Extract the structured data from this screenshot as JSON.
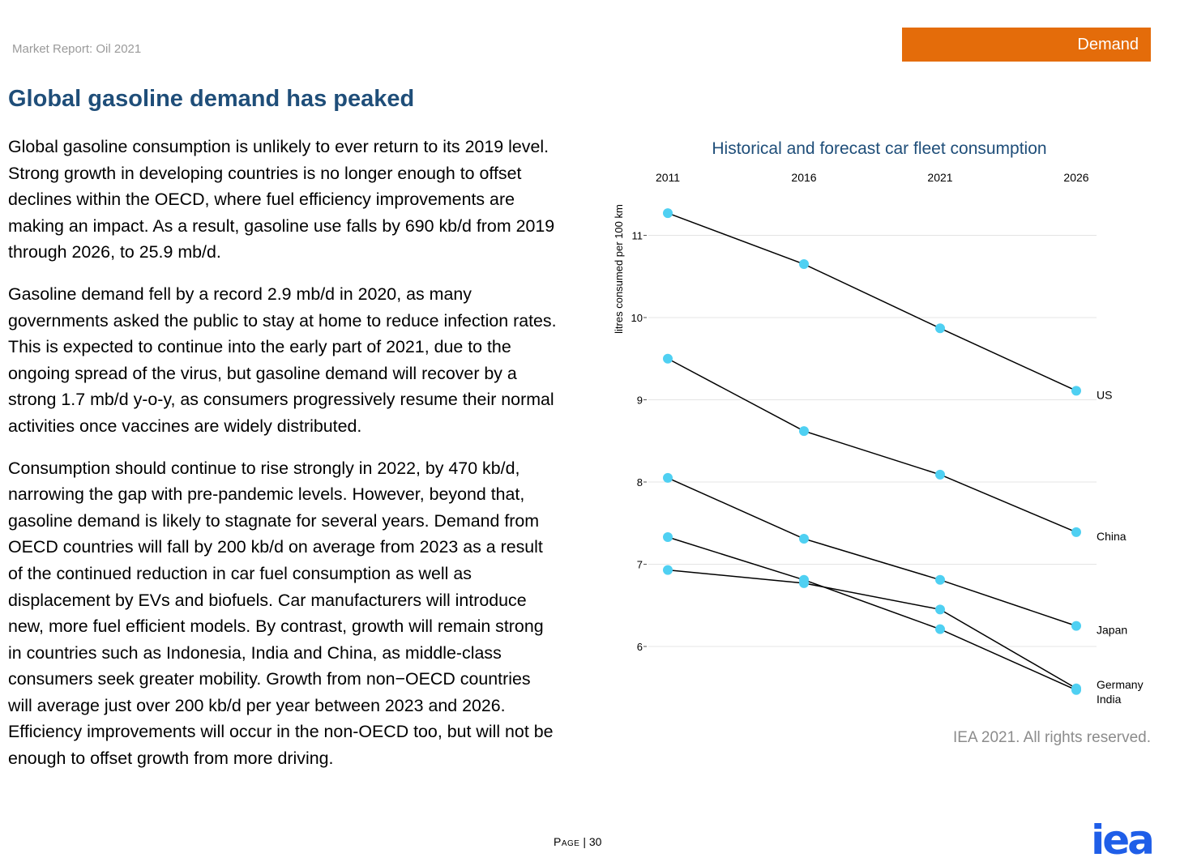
{
  "header": {
    "report_name": "Market Report: Oil 2021",
    "section": "Demand"
  },
  "page_title": "Global gasoline demand has peaked",
  "paragraphs": [
    "Global gasoline consumption is unlikely to ever return to its 2019 level. Strong growth in developing countries is no longer enough to offset declines within the OECD, where fuel efficiency improvements are making an impact. As a result, gasoline use falls by 690 kb/d from 2019 through 2026, to 25.9 mb/d.",
    "Gasoline demand fell by a record 2.9 mb/d in 2020, as many governments asked the public to stay at home to reduce infection rates. This is expected to continue into the early part of 2021, due to the ongoing spread of the virus, but gasoline demand will recover by a strong 1.7 mb/d y-o-y, as consumers progressively resume their normal activities once vaccines are widely distributed.",
    "Consumption should continue to rise strongly in 2022, by 470 kb/d, narrowing the gap with pre-pandemic levels. However, beyond that, gasoline demand is likely to stagnate for several years. Demand from OECD countries will fall by 200 kb/d on average from 2023 as a result of the continued reduction in car fuel consumption as well as displacement by EVs and biofuels. Car manufacturers will introduce new, more fuel efficient models. By contrast, growth will remain strong in countries such as Indonesia, India and China, as middle-class consumers seek greater mobility. Growth from non−OECD countries will average just over 200 kb/d per year between 2023 and 2026. Efficiency improvements will occur in the non-OECD too, but will not be enough to offset growth from more driving."
  ],
  "chart_data": {
    "type": "line",
    "title": "Historical and forecast car fleet consumption",
    "xlabel": "",
    "ylabel": "litres consumed per 100 km",
    "x": [
      "2011",
      "2016",
      "2021",
      "2026"
    ],
    "y_ticks": [
      6,
      7,
      8,
      9,
      10,
      11
    ],
    "ylim": [
      5.2,
      11.6
    ],
    "x_axis_position": "top",
    "grid": true,
    "series": [
      {
        "name": "US",
        "values": [
          11.27,
          10.65,
          9.87,
          9.11
        ]
      },
      {
        "name": "China",
        "values": [
          9.5,
          8.62,
          8.09,
          7.39
        ]
      },
      {
        "name": "Japan",
        "values": [
          8.05,
          7.31,
          6.81,
          6.25
        ]
      },
      {
        "name": "Germany",
        "values": [
          7.33,
          6.81,
          6.21,
          5.47
        ]
      },
      {
        "name": "India",
        "values": [
          6.93,
          6.77,
          6.45,
          5.49
        ]
      }
    ],
    "colors": {
      "marker": "#4fd0f2",
      "line": "#000000",
      "grid": "#e4e4e4",
      "title": "#1f4e79"
    }
  },
  "copyright": "IEA 2021. All rights reserved.",
  "footer": {
    "page_label": "Page",
    "page_number": "30",
    "logo_text": "iea",
    "logo_color": "#1f5ee8"
  }
}
